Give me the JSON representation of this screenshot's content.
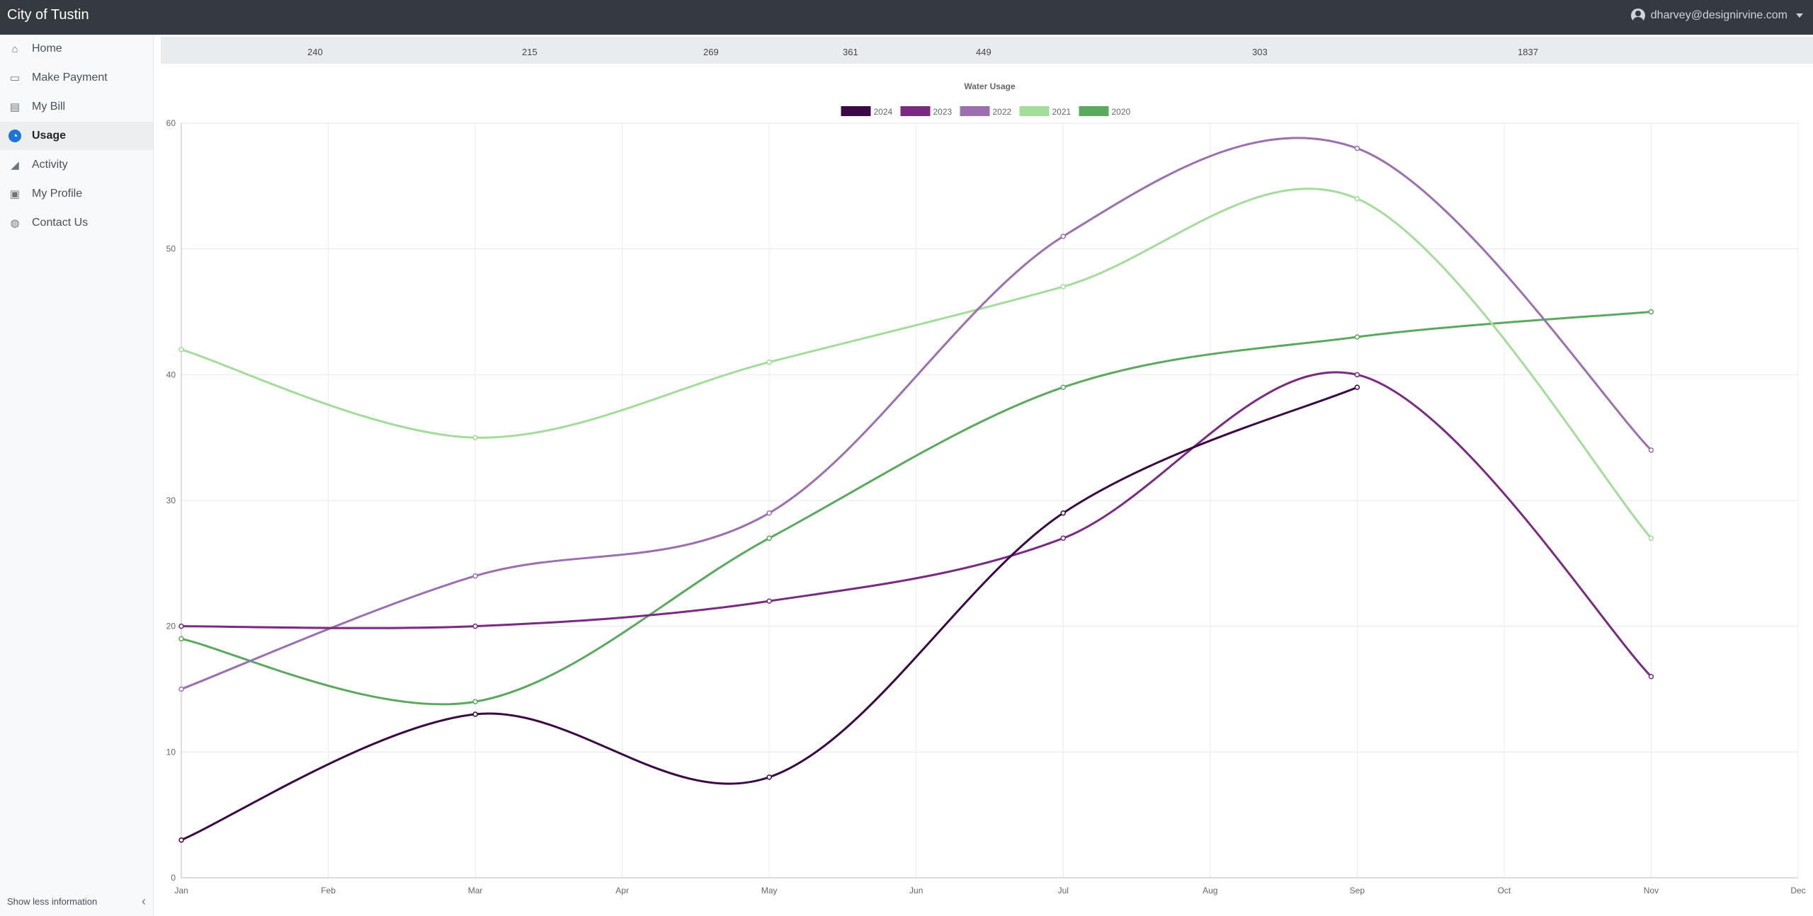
{
  "app": {
    "title": "City of Tustin",
    "user": "dharvey@designirvine.com"
  },
  "sidebar": {
    "items": [
      {
        "label": "Home",
        "icon": "home-icon",
        "glyph": "⌂",
        "active": false
      },
      {
        "label": "Make Payment",
        "icon": "money-icon",
        "glyph": "▭",
        "active": false
      },
      {
        "label": "My Bill",
        "icon": "bill-icon",
        "glyph": "▤",
        "active": false
      },
      {
        "label": "Usage",
        "icon": "gauge-icon",
        "glyph": "◔",
        "active": true
      },
      {
        "label": "Activity",
        "icon": "area-chart-icon",
        "glyph": "◢",
        "active": false
      },
      {
        "label": "My Profile",
        "icon": "id-card-icon",
        "glyph": "▣",
        "active": false
      },
      {
        "label": "Contact Us",
        "icon": "comments-icon",
        "glyph": "◍",
        "active": false
      }
    ],
    "footer_label": "Show less information"
  },
  "stats": {
    "values": [
      "240",
      "215",
      "269",
      "361",
      "449",
      "303",
      "1837"
    ]
  },
  "chart_data": {
    "type": "line",
    "title": "Water Usage",
    "categories": [
      "Jan",
      "Feb",
      "Mar",
      "Apr",
      "May",
      "Jun",
      "Jul",
      "Aug",
      "Sep",
      "Oct",
      "Nov",
      "Dec"
    ],
    "ylim": [
      0,
      60
    ],
    "yticks": [
      0,
      10,
      20,
      30,
      40,
      50,
      60
    ],
    "grid": true,
    "legend_position": "top",
    "series": [
      {
        "name": "2024",
        "color": "#3b0a45",
        "points": [
          [
            "Jan",
            3
          ],
          [
            "Mar",
            13
          ],
          [
            "May",
            8
          ],
          [
            "Jul",
            29
          ],
          [
            "Sep",
            39
          ]
        ]
      },
      {
        "name": "2023",
        "color": "#7a2a82",
        "points": [
          [
            "Jan",
            20
          ],
          [
            "Mar",
            20
          ],
          [
            "May",
            22
          ],
          [
            "Jul",
            27
          ],
          [
            "Sep",
            40
          ],
          [
            "Nov",
            16
          ]
        ]
      },
      {
        "name": "2022",
        "color": "#9b6fb0",
        "points": [
          [
            "Jan",
            15
          ],
          [
            "Mar",
            24
          ],
          [
            "May",
            29
          ],
          [
            "Jul",
            51
          ],
          [
            "Sep",
            58
          ],
          [
            "Nov",
            34
          ]
        ]
      },
      {
        "name": "2021",
        "color": "#a3dd9a",
        "points": [
          [
            "Jan",
            42
          ],
          [
            "Mar",
            35
          ],
          [
            "May",
            41
          ],
          [
            "Jul",
            47
          ],
          [
            "Sep",
            54
          ],
          [
            "Nov",
            27
          ]
        ]
      },
      {
        "name": "2020",
        "color": "#5aaa5e",
        "points": [
          [
            "Jan",
            19
          ],
          [
            "Mar",
            14
          ],
          [
            "May",
            27
          ],
          [
            "Jul",
            39
          ],
          [
            "Sep",
            43
          ],
          [
            "Nov",
            45
          ]
        ]
      }
    ]
  }
}
